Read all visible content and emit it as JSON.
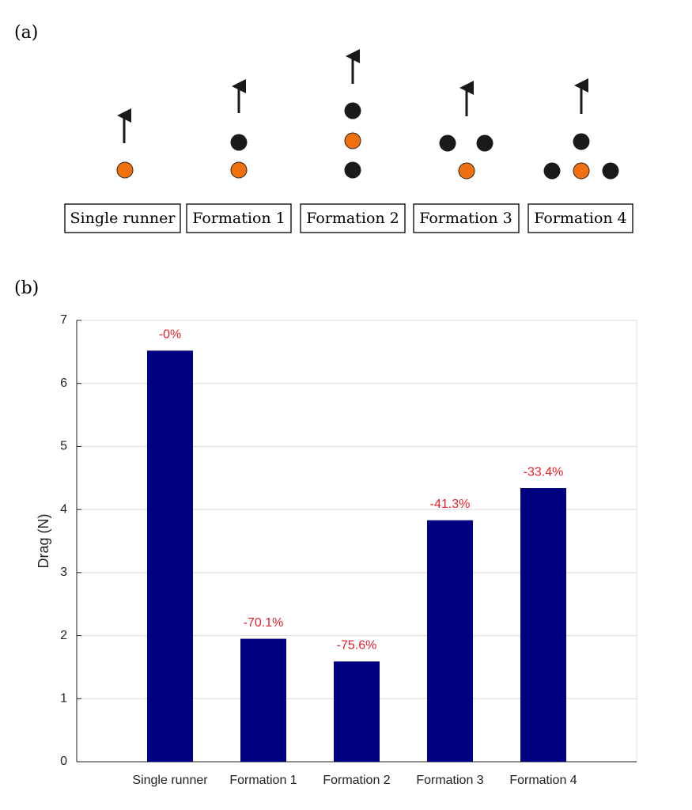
{
  "panel_a": {
    "label": "(a)",
    "formations": [
      "Single runner",
      "Formation 1",
      "Formation 2",
      "Formation 3",
      "Formation 4"
    ]
  },
  "panel_b": {
    "label": "(b)"
  },
  "chart_data": {
    "type": "bar",
    "ylabel": "Drag (N)",
    "categories": [
      "Single runner",
      "Formation 1",
      "Formation 2",
      "Formation 3",
      "Formation 4"
    ],
    "values": [
      6.52,
      1.95,
      1.59,
      3.83,
      4.34
    ],
    "annotations": [
      "-0%",
      "-70.1%",
      "-75.6%",
      "-41.3%",
      "-33.4%"
    ],
    "annotation_color": "#e8202a",
    "color": "#000080",
    "ylim": [
      0,
      7
    ],
    "yticks": [
      0,
      1,
      2,
      3,
      4,
      5,
      6,
      7
    ],
    "grid": true
  }
}
